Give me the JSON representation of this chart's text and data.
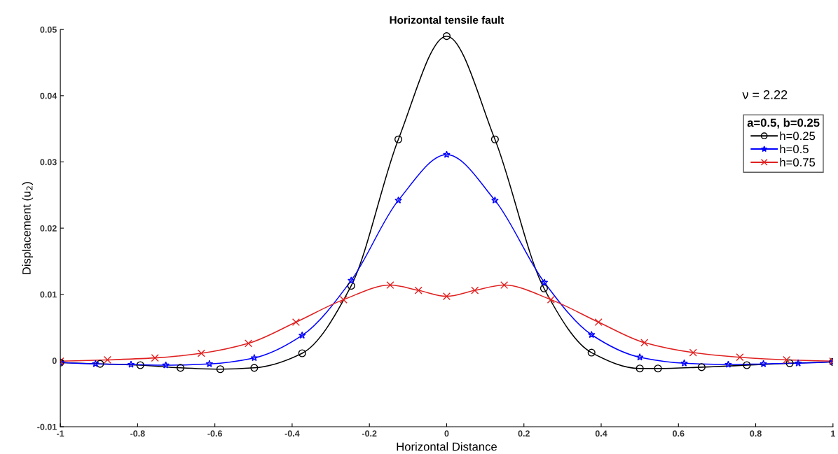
{
  "chart_data": {
    "type": "line",
    "title": "Horizontal tensile fault",
    "xlabel": "Horizontal Distance",
    "ylabel": "Displacement (u$_{2}$)",
    "legend_title": "a=0.5, b=0.25",
    "annotations": [
      "ν = 2.22"
    ],
    "xlim": [
      -1,
      1
    ],
    "xticks": [
      -1,
      -0.8,
      -0.6,
      -0.4,
      -0.2,
      0,
      0.2,
      0.4,
      0.6,
      0.8,
      1
    ],
    "ylim": [
      -0.01,
      0.05
    ],
    "yticks": [
      -0.01,
      0,
      0.01,
      0.02,
      0.03,
      0.04,
      0.05
    ],
    "grid": false,
    "legend": "top right",
    "line_style": "solid",
    "series": [
      {
        "name": "h=0.25",
        "color": "#000000",
        "marker": "circle",
        "x": [
          -1,
          -0.897,
          -0.793,
          -0.689,
          -0.586,
          -0.498,
          -0.374,
          -0.247,
          -0.125,
          0,
          0.125,
          0.252,
          0.375,
          0.5,
          0.547,
          0.66,
          0.777,
          0.888,
          1
        ],
        "values": [
          -0.0003,
          -0.0005,
          -0.0007,
          -0.0011,
          -0.0013,
          -0.0011,
          0.0011,
          0.0113,
          0.0334,
          0.049,
          0.0334,
          0.0109,
          0.0012,
          -0.0012,
          -0.0012,
          -0.001,
          -0.0007,
          -0.0004,
          -0.0002
        ]
      },
      {
        "name": "h=0.5",
        "color": "#0000ff",
        "marker": "star",
        "x": [
          -1,
          -0.909,
          -0.817,
          -0.727,
          -0.614,
          -0.498,
          -0.374,
          -0.247,
          -0.125,
          0,
          0.125,
          0.253,
          0.375,
          0.5,
          0.615,
          0.729,
          0.82,
          0.91,
          1
        ],
        "values": [
          -0.0003,
          -0.0005,
          -0.0006,
          -0.0007,
          -0.0005,
          0.0004,
          0.0038,
          0.0121,
          0.0242,
          0.0311,
          0.0242,
          0.0118,
          0.0039,
          0.0005,
          -0.0004,
          -0.0006,
          -0.0005,
          -0.0004,
          -0.0002
        ]
      },
      {
        "name": "h=0.75",
        "color": "#e02020",
        "marker": "cross",
        "x": [
          -1,
          -0.878,
          -0.755,
          -0.635,
          -0.513,
          -0.39,
          -0.267,
          -0.146,
          -0.073,
          0,
          0.073,
          0.149,
          0.27,
          0.393,
          0.512,
          0.638,
          0.759,
          0.88,
          1
        ],
        "values": [
          -0.0001,
          0.0001,
          0.0004,
          0.0011,
          0.0026,
          0.0058,
          0.0092,
          0.0114,
          0.0106,
          0.0097,
          0.0106,
          0.0114,
          0.0092,
          0.0058,
          0.0027,
          0.0012,
          0.0005,
          0.0001,
          -0.0001
        ]
      }
    ]
  }
}
